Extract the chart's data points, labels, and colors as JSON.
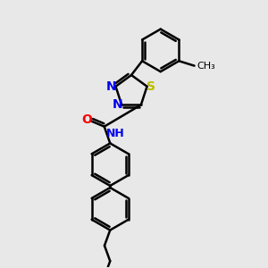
{
  "bg_color": "#e8e8e8",
  "bond_color": "#000000",
  "bond_width": 1.8,
  "atom_colors": {
    "N": "#0000ee",
    "O": "#ff0000",
    "S": "#bbbb00",
    "H": "#008888"
  },
  "font_size_atom": 10,
  "fig_bg": "#e8e8e8",
  "figsize": [
    3.0,
    3.0
  ],
  "dpi": 100
}
